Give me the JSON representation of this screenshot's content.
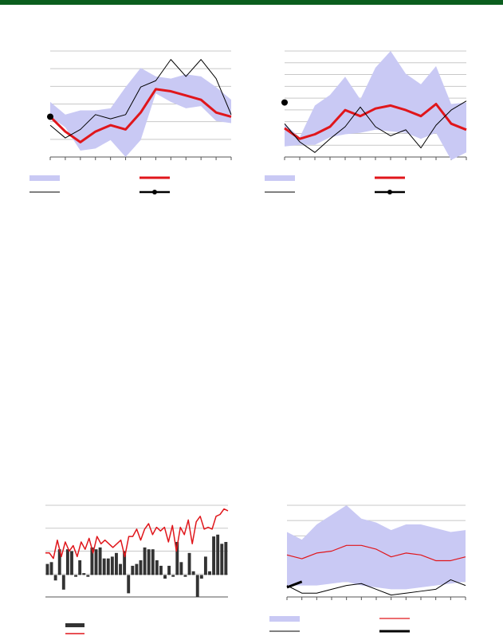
{
  "colors": {
    "header_bar": "#0b5e1e",
    "band": "#c9c9f4",
    "mean_line": "#e0161b",
    "actual_line": "#000000",
    "bars": "#333333",
    "grid": "#c8c8c8",
    "axis": "#555555"
  },
  "chart_data": [
    {
      "id": "chart-top-left",
      "type": "line",
      "title": "",
      "xlabel": "",
      "ylabel": "",
      "x": [
        0,
        1,
        2,
        3,
        4,
        5,
        6,
        7,
        8,
        9,
        10,
        11,
        12
      ],
      "xlim": [
        0,
        12
      ],
      "ylim": [
        0,
        5
      ],
      "grid": true,
      "legend": "bottom",
      "band": {
        "upper": [
          2.6,
          2.0,
          2.2,
          2.2,
          2.3,
          3.3,
          4.2,
          3.8,
          3.7,
          3.9,
          3.8,
          3.3,
          2.7
        ],
        "lower": [
          1.9,
          1.4,
          0.3,
          0.4,
          0.8,
          0.0,
          0.8,
          3.0,
          2.6,
          2.3,
          2.4,
          1.7,
          1.6
        ]
      },
      "series": [
        {
          "role": "mean",
          "values": [
            1.9,
            1.2,
            0.7,
            1.2,
            1.5,
            1.3,
            2.1,
            3.2,
            3.1,
            2.9,
            2.7,
            2.1,
            1.9
          ]
        },
        {
          "role": "actual",
          "values": [
            1.5,
            0.9,
            1.3,
            2.0,
            1.8,
            2.0,
            3.3,
            3.6,
            4.6,
            3.8,
            4.6,
            3.7,
            2.0
          ]
        }
      ],
      "marker": {
        "x": 0,
        "y": 1.9
      },
      "legend_entries": [
        {
          "symbol": "band",
          "label": ""
        },
        {
          "symbol": "mean",
          "label": ""
        },
        {
          "symbol": "actual",
          "label": ""
        },
        {
          "symbol": "dot-line",
          "label": ""
        }
      ]
    },
    {
      "id": "chart-top-right",
      "type": "line",
      "title": "",
      "xlabel": "",
      "ylabel": "",
      "x": [
        0,
        1,
        2,
        3,
        4,
        5,
        6,
        7,
        8,
        9,
        10,
        11,
        12
      ],
      "xlim": [
        0,
        12
      ],
      "ylim": [
        0,
        7
      ],
      "grid": true,
      "legend": "bottom",
      "band": {
        "upper": [
          2.2,
          1.3,
          3.4,
          4.1,
          5.3,
          3.8,
          5.9,
          7.0,
          5.5,
          4.8,
          6.0,
          3.5,
          3.6
        ],
        "lower": [
          0.7,
          0.8,
          0.8,
          1.3,
          1.5,
          1.6,
          1.8,
          1.7,
          1.6,
          1.2,
          1.6,
          -0.2,
          0.3
        ]
      },
      "series": [
        {
          "role": "mean",
          "values": [
            1.9,
            1.2,
            1.5,
            2.0,
            3.1,
            2.7,
            3.2,
            3.4,
            3.1,
            2.7,
            3.5,
            2.2,
            1.8
          ]
        },
        {
          "role": "actual",
          "values": [
            2.2,
            1.0,
            0.3,
            1.2,
            2.0,
            3.3,
            2.0,
            1.4,
            1.8,
            0.6,
            2.1,
            3.1,
            3.7
          ]
        }
      ],
      "marker": {
        "x": 0,
        "y": 3.6
      },
      "legend_entries": [
        {
          "symbol": "band",
          "label": ""
        },
        {
          "symbol": "mean",
          "label": ""
        },
        {
          "symbol": "actual",
          "label": ""
        },
        {
          "symbol": "dot-line",
          "label": ""
        }
      ]
    },
    {
      "id": "chart-bottom-left",
      "type": "bar",
      "title": "",
      "xlabel": "",
      "ylabel": "",
      "ylim": [
        -1.2,
        3.8
      ],
      "grid": true,
      "legend": "bottom",
      "bars": [
        0.6,
        0.7,
        -0.3,
        1.4,
        -0.8,
        1.4,
        1.3,
        -0.1,
        0.8,
        0.1,
        -0.1,
        1.5,
        1.4,
        1.5,
        0.9,
        0.9,
        1.0,
        1.2,
        0.6,
        1.3,
        -1.0,
        0.5,
        0.6,
        0.8,
        1.5,
        1.4,
        1.4,
        0.8,
        0.5,
        -0.2,
        0.5,
        -0.1,
        1.8,
        0.7,
        -0.1,
        1.2,
        0.2,
        -1.2,
        -0.2,
        1.0,
        0.2,
        2.1,
        2.2,
        1.7,
        1.8
      ],
      "line": [
        1.2,
        1.2,
        0.9,
        1.9,
        1.0,
        1.8,
        1.3,
        1.6,
        1.0,
        1.8,
        1.4,
        2.0,
        1.2,
        2.1,
        1.7,
        1.9,
        1.7,
        1.5,
        1.7,
        1.9,
        1.0,
        2.1,
        2.1,
        2.5,
        1.9,
        2.5,
        2.8,
        2.2,
        2.6,
        2.4,
        2.6,
        1.8,
        2.7,
        1.3,
        2.6,
        2.2,
        3.0,
        1.7,
        2.9,
        3.2,
        2.5,
        2.6,
        2.5,
        3.2,
        3.3,
        3.6,
        3.5
      ],
      "legend_entries": [
        {
          "symbol": "bar",
          "label": ""
        },
        {
          "symbol": "line-red",
          "label": ""
        }
      ]
    },
    {
      "id": "chart-bottom-right",
      "type": "line",
      "title": "",
      "xlabel": "",
      "ylabel": "",
      "x": [
        0,
        1,
        2,
        3,
        4,
        5,
        6,
        7,
        8,
        9,
        10,
        11,
        12
      ],
      "xlim": [
        0,
        12
      ],
      "ylim": [
        0,
        4.8
      ],
      "grid": true,
      "legend": "bottom",
      "band": {
        "upper": [
          3.4,
          3.0,
          3.8,
          4.3,
          4.8,
          4.1,
          3.9,
          3.5,
          3.8,
          3.8,
          3.6,
          3.4,
          3.5
        ],
        "lower": [
          0.6,
          0.6,
          0.6,
          0.7,
          0.8,
          0.6,
          0.5,
          0.4,
          0.4,
          0.5,
          0.6,
          0.7,
          0.8
        ]
      },
      "series": [
        {
          "role": "mean",
          "values": [
            2.2,
            2.0,
            2.3,
            2.4,
            2.7,
            2.7,
            2.5,
            2.1,
            2.3,
            2.2,
            1.9,
            1.9,
            2.1
          ]
        },
        {
          "role": "actual",
          "values": [
            0.6,
            0.2,
            0.2,
            0.4,
            0.6,
            0.7,
            0.4,
            0.1,
            0.2,
            0.3,
            0.4,
            0.9,
            0.6
          ]
        }
      ],
      "segment": {
        "x": [
          0,
          1
        ],
        "y": [
          0.5,
          0.8
        ]
      },
      "legend_entries": [
        {
          "symbol": "band",
          "label": ""
        },
        {
          "symbol": "mean-thin",
          "label": ""
        },
        {
          "symbol": "actual",
          "label": ""
        },
        {
          "symbol": "thick-black",
          "label": ""
        }
      ]
    }
  ]
}
